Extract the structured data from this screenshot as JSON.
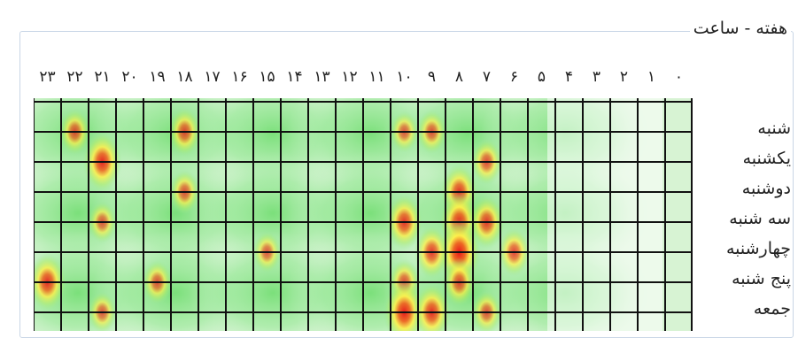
{
  "panel": {
    "title": "هفته - ساعت"
  },
  "hours": [
    "۰",
    "۱",
    "۲",
    "۳",
    "۴",
    "۵",
    "۶",
    "۷",
    "۸",
    "۹",
    "۱۰",
    "۱۱",
    "۱۲",
    "۱۳",
    "۱۴",
    "۱۵",
    "۱۶",
    "۱۷",
    "۱۸",
    "۱۹",
    "۲۰",
    "۲۱",
    "۲۲",
    "۲۳"
  ],
  "days": [
    "شنبه",
    "یکشنبه",
    "دوشنبه",
    "سه شنبه",
    "چهارشنبه",
    "پنج شنبه",
    "جمعه"
  ],
  "chart_data": {
    "type": "heatmap",
    "x_direction": "right-to-left",
    "hot_spots": [
      {
        "day": "شنبه",
        "hour": 22,
        "level": 0.55
      },
      {
        "day": "شنبه",
        "hour": 18,
        "level": 0.6
      },
      {
        "day": "شنبه",
        "hour": 10,
        "level": 0.45
      },
      {
        "day": "شنبه",
        "hour": 9,
        "level": 0.5
      },
      {
        "day": "یکشنبه",
        "hour": 21,
        "level": 0.85
      },
      {
        "day": "یکشنبه",
        "hour": 7,
        "level": 0.55
      },
      {
        "day": "دوشنبه",
        "hour": 18,
        "level": 0.5
      },
      {
        "day": "دوشنبه",
        "hour": 8,
        "level": 0.75
      },
      {
        "day": "سه شنبه",
        "hour": 21,
        "level": 0.45
      },
      {
        "day": "سه شنبه",
        "hour": 10,
        "level": 0.75
      },
      {
        "day": "سه شنبه",
        "hour": 8,
        "level": 0.85
      },
      {
        "day": "سه شنبه",
        "hour": 7,
        "level": 0.7
      },
      {
        "day": "چهارشنبه",
        "hour": 8,
        "level": 1.0
      },
      {
        "day": "چهارشنبه",
        "hour": 9,
        "level": 0.7
      },
      {
        "day": "چهارشنبه",
        "hour": 6,
        "level": 0.6
      },
      {
        "day": "چهارشنبه",
        "hour": 15,
        "level": 0.45
      },
      {
        "day": "پنج شنبه",
        "hour": 23,
        "level": 0.8
      },
      {
        "day": "پنج شنبه",
        "hour": 19,
        "level": 0.5
      },
      {
        "day": "پنج شنبه",
        "hour": 10,
        "level": 0.55
      },
      {
        "day": "پنج شنبه",
        "hour": 8,
        "level": 0.6
      },
      {
        "day": "جمعه",
        "hour": 10,
        "level": 0.95
      },
      {
        "day": "جمعه",
        "hour": 9,
        "level": 0.8
      },
      {
        "day": "جمعه",
        "hour": 7,
        "level": 0.5
      },
      {
        "day": "جمعه",
        "hour": 21,
        "level": 0.45
      }
    ]
  }
}
